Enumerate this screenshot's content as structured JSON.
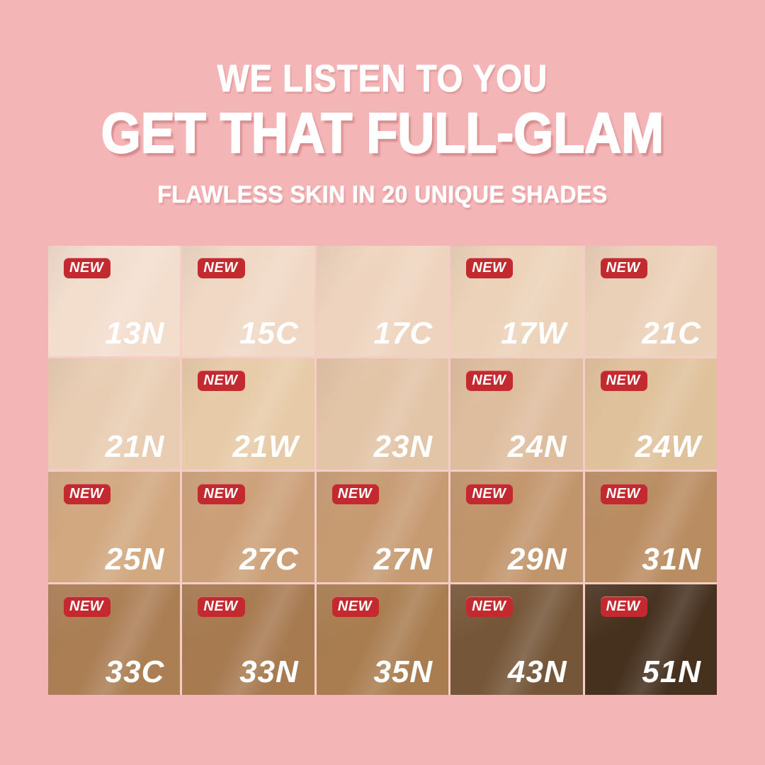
{
  "poster": {
    "background_color": "#F4B5B6",
    "header": {
      "eyebrow": "WE LISTEN TO YOU",
      "title": "GET THAT FULL-GLAM",
      "subtitle": "FLAWLESS SKIN IN 20 UNIQUE SHADES",
      "text_color": "#FFFFFF"
    },
    "new_badge": {
      "label": "NEW",
      "background_color": "#C22A30",
      "text_color": "#FFFFFF"
    },
    "shade_grid": {
      "gap_color": "#F6CCC7",
      "cells": [
        {
          "label": "13N",
          "is_new": true,
          "color": "#F3DECE"
        },
        {
          "label": "15C",
          "is_new": true,
          "color": "#F0D8C5"
        },
        {
          "label": "17C",
          "is_new": false,
          "color": "#EED4BE"
        },
        {
          "label": "17W",
          "is_new": true,
          "color": "#ECD2B9"
        },
        {
          "label": "21C",
          "is_new": true,
          "color": "#EBD0B8"
        },
        {
          "label": "21N",
          "is_new": false,
          "color": "#E8CDB2"
        },
        {
          "label": "21W",
          "is_new": true,
          "color": "#E7CBA8"
        },
        {
          "label": "23N",
          "is_new": false,
          "color": "#E2C4A6"
        },
        {
          "label": "24N",
          "is_new": true,
          "color": "#DEBD9E"
        },
        {
          "label": "24W",
          "is_new": true,
          "color": "#DFC19B"
        },
        {
          "label": "25N",
          "is_new": true,
          "color": "#D1A880"
        },
        {
          "label": "27C",
          "is_new": true,
          "color": "#CBA078"
        },
        {
          "label": "27N",
          "is_new": true,
          "color": "#C69B72"
        },
        {
          "label": "29N",
          "is_new": true,
          "color": "#C1956B"
        },
        {
          "label": "31N",
          "is_new": true,
          "color": "#B98C61"
        },
        {
          "label": "33C",
          "is_new": true,
          "color": "#AB7E54"
        },
        {
          "label": "33N",
          "is_new": true,
          "color": "#A77A50"
        },
        {
          "label": "35N",
          "is_new": true,
          "color": "#A97D50"
        },
        {
          "label": "43N",
          "is_new": true,
          "color": "#755638"
        },
        {
          "label": "51N",
          "is_new": true,
          "color": "#46301E"
        }
      ]
    }
  }
}
